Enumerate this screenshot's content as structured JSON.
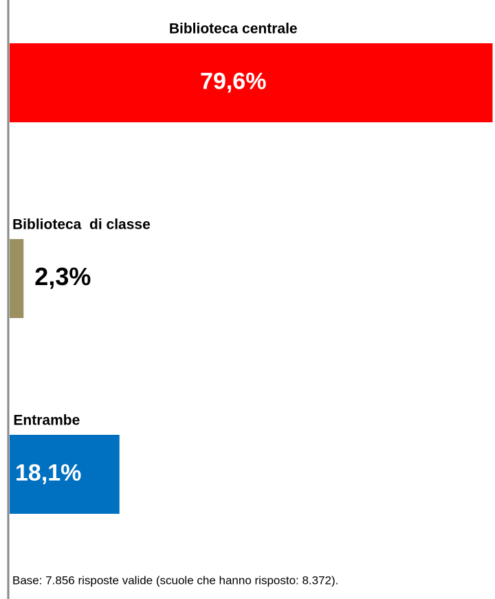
{
  "chart_data": {
    "type": "barh",
    "categories": [
      "Biblioteca centrale",
      "Biblioteca  di classe",
      "Entrambe"
    ],
    "values": [
      79.6,
      2.3,
      18.1
    ],
    "value_labels": [
      "79,6%",
      "2,3%",
      "18,1%"
    ],
    "colors": [
      "#ff0000",
      "#9b9160",
      "#0070c0"
    ],
    "xlim": [
      0,
      80
    ],
    "note": "Base: 7.856 risposte valide (scuole che hanno risposto: 8.372)."
  }
}
